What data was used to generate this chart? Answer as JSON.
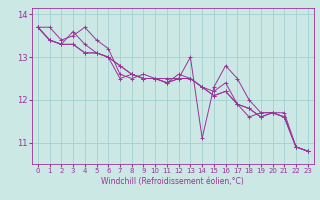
{
  "xlabel": "Windchill (Refroidissement éolien,°C)",
  "bg_color": "#cce8e4",
  "line_color": "#993399",
  "grid_color": "#99cccc",
  "x_hours": [
    0,
    1,
    2,
    3,
    4,
    5,
    6,
    7,
    8,
    9,
    10,
    11,
    12,
    13,
    14,
    15,
    16,
    17,
    18,
    19,
    20,
    21,
    22,
    23
  ],
  "series": [
    [
      13.7,
      13.7,
      13.4,
      13.5,
      13.7,
      13.4,
      13.2,
      12.6,
      12.5,
      12.6,
      12.5,
      12.5,
      12.5,
      13.0,
      11.1,
      12.3,
      12.8,
      12.5,
      12.0,
      11.7,
      11.7,
      11.7,
      10.9,
      10.8
    ],
    [
      13.7,
      13.4,
      13.3,
      13.6,
      13.3,
      13.1,
      13.0,
      12.5,
      12.6,
      12.5,
      12.5,
      12.4,
      12.6,
      12.5,
      12.3,
      12.2,
      12.4,
      11.9,
      11.6,
      11.7,
      11.7,
      11.6,
      10.9,
      10.8
    ],
    [
      13.7,
      13.4,
      13.3,
      13.3,
      13.1,
      13.1,
      13.0,
      12.8,
      12.6,
      12.5,
      12.5,
      12.4,
      12.5,
      12.5,
      12.3,
      12.1,
      12.2,
      11.9,
      11.8,
      11.6,
      11.7,
      11.6,
      10.9,
      10.8
    ],
    [
      13.7,
      13.4,
      13.3,
      13.3,
      13.1,
      13.1,
      13.0,
      12.8,
      12.6,
      12.5,
      12.5,
      12.4,
      12.5,
      12.5,
      12.3,
      12.1,
      12.2,
      11.9,
      11.8,
      11.6,
      11.7,
      11.6,
      10.9,
      10.8
    ]
  ],
  "ylim": [
    10.5,
    14.15
  ],
  "yticks": [
    11,
    12,
    13,
    14
  ],
  "xlim": [
    -0.5,
    23.5
  ],
  "xticks": [
    0,
    1,
    2,
    3,
    4,
    5,
    6,
    7,
    8,
    9,
    10,
    11,
    12,
    13,
    14,
    15,
    16,
    17,
    18,
    19,
    20,
    21,
    22,
    23
  ],
  "linewidth": 0.7,
  "markersize": 3.0,
  "xlabel_fontsize": 5.5,
  "xtick_fontsize": 5.0,
  "ytick_fontsize": 6.0
}
